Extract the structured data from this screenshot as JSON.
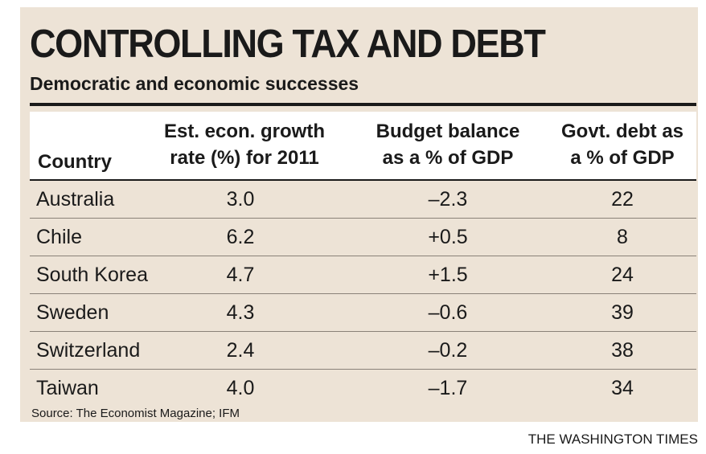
{
  "chart_data": {
    "type": "table",
    "title": "CONTROLLING TAX AND DEBT",
    "subtitle": "Democratic and economic successes",
    "columns": [
      {
        "key": "country",
        "label_lines": [
          "Country"
        ]
      },
      {
        "key": "growth",
        "label_lines": [
          "Est. econ. growth",
          "rate (%) for 2011"
        ]
      },
      {
        "key": "budget",
        "label_lines": [
          "Budget balance",
          "as a % of GDP"
        ]
      },
      {
        "key": "debt",
        "label_lines": [
          "Govt. debt as",
          "a % of GDP"
        ]
      }
    ],
    "rows": [
      {
        "country": "Australia",
        "growth": "3.0",
        "budget": "–2.3",
        "debt": "22"
      },
      {
        "country": "Chile",
        "growth": "6.2",
        "budget": "+0.5",
        "debt": "8"
      },
      {
        "country": "South Korea",
        "growth": "4.7",
        "budget": "+1.5",
        "debt": "24"
      },
      {
        "country": "Sweden",
        "growth": "4.3",
        "budget": "–0.6",
        "debt": "39"
      },
      {
        "country": "Switzerland",
        "growth": "2.4",
        "budget": "–0.2",
        "debt": "38"
      },
      {
        "country": "Taiwan",
        "growth": "4.0",
        "budget": "–1.7",
        "debt": "34"
      }
    ],
    "source": "Source: The Economist Magazine; IFM",
    "credit": "THE WASHINGTON TIMES"
  },
  "colors": {
    "panel_background": "#ede3d6",
    "header_background": "#ffffff",
    "text": "#1a1a1a",
    "row_rule": "#8a8178"
  }
}
